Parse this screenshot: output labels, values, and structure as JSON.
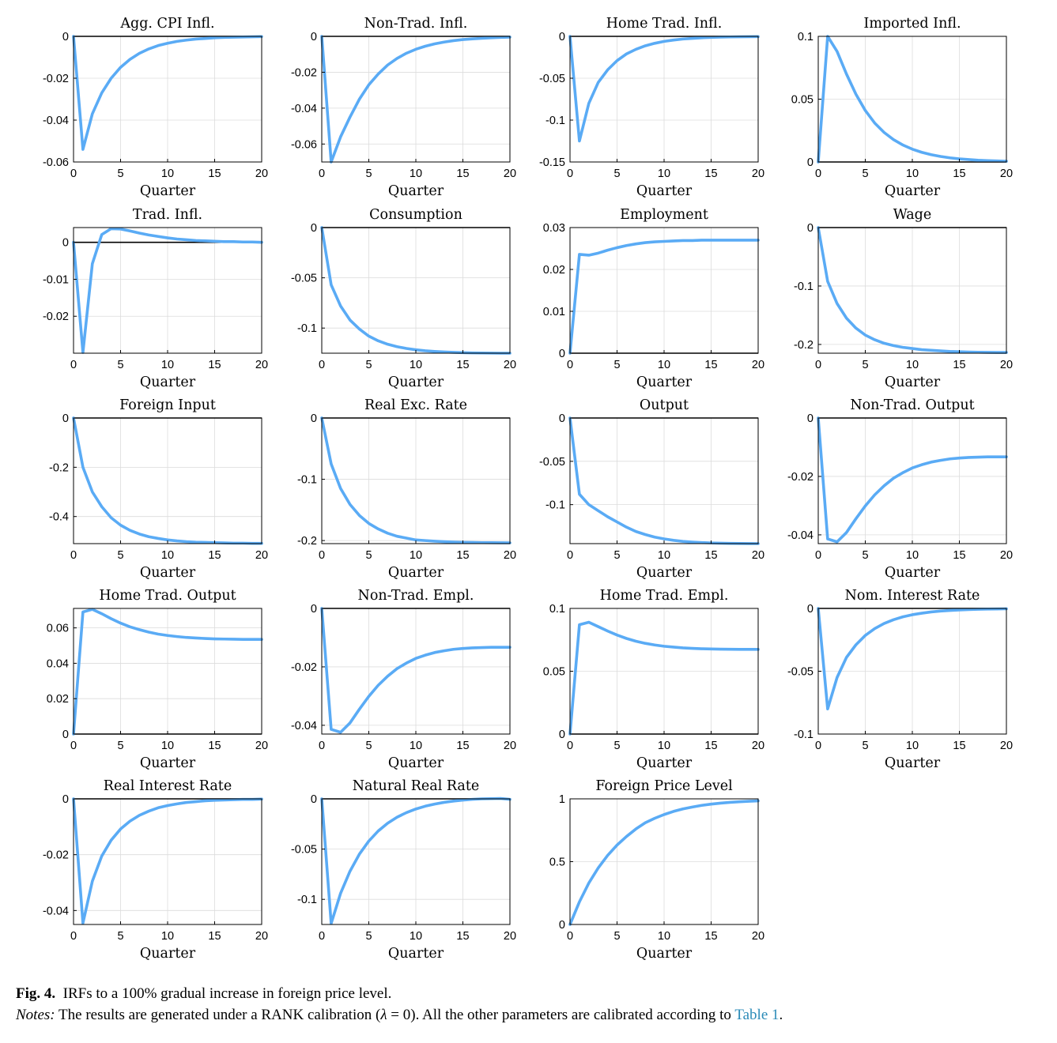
{
  "figure": {
    "x_label": "Quarter",
    "x_ticks": [
      0,
      5,
      10,
      15,
      20
    ],
    "line_color": "#5aabf5",
    "zero_line_color": "#000000",
    "grid": true,
    "grid_color": "#dcdcdc"
  },
  "caption": {
    "fig_label": "Fig. 4.",
    "title": "IRFs to a 100% gradual increase in foreign price level.",
    "notes_label": "Notes:",
    "notes_text_1": "The results are generated under a RANK calibration (",
    "lambda_symbol": "λ",
    "notes_text_2": " = 0). All the other parameters are calibrated according to ",
    "link_text": "Table 1",
    "notes_end": "."
  },
  "chart_data": [
    {
      "type": "line",
      "title": "Agg. CPI Infl.",
      "xlabel": "Quarter",
      "ylim": [
        -0.06,
        0
      ],
      "yticks": [
        0,
        -0.02,
        -0.04,
        -0.06
      ],
      "ytick_labels": [
        "0",
        "-0.02",
        "-0.04",
        "-0.06"
      ],
      "zero_line": true,
      "x": [
        0,
        1,
        2,
        3,
        4,
        5,
        6,
        7,
        8,
        9,
        10,
        11,
        12,
        13,
        14,
        15,
        16,
        17,
        18,
        19,
        20
      ],
      "y": [
        0,
        -0.054,
        -0.037,
        -0.027,
        -0.02,
        -0.0148,
        -0.011,
        -0.0081,
        -0.006,
        -0.0044,
        -0.0033,
        -0.0024,
        -0.0018,
        -0.0013,
        -0.001,
        -0.0007,
        -0.0005,
        -0.0004,
        -0.0003,
        -0.0002,
        -0.0001
      ]
    },
    {
      "type": "line",
      "title": "Non-Trad. Infl.",
      "xlabel": "Quarter",
      "ylim": [
        -0.07,
        0
      ],
      "yticks": [
        0,
        -0.02,
        -0.04,
        -0.06
      ],
      "ytick_labels": [
        "0",
        "-0.02",
        "-0.04",
        "-0.06"
      ],
      "zero_line": true,
      "x": [
        0,
        1,
        2,
        3,
        4,
        5,
        6,
        7,
        8,
        9,
        10,
        11,
        12,
        13,
        14,
        15,
        16,
        17,
        18,
        19,
        20
      ],
      "y": [
        0,
        -0.07,
        -0.056,
        -0.045,
        -0.035,
        -0.027,
        -0.021,
        -0.016,
        -0.0123,
        -0.0094,
        -0.0072,
        -0.0055,
        -0.0042,
        -0.0032,
        -0.0024,
        -0.0018,
        -0.0014,
        -0.0011,
        -0.0008,
        -0.0006,
        -0.0004
      ]
    },
    {
      "type": "line",
      "title": "Home Trad. Infl.",
      "xlabel": "Quarter",
      "ylim": [
        -0.15,
        0
      ],
      "yticks": [
        0,
        -0.05,
        -0.1,
        -0.15
      ],
      "ytick_labels": [
        "0",
        "-0.05",
        "-0.1",
        "-0.15"
      ],
      "zero_line": true,
      "x": [
        0,
        1,
        2,
        3,
        4,
        5,
        6,
        7,
        8,
        9,
        10,
        11,
        12,
        13,
        14,
        15,
        16,
        17,
        18,
        19,
        20
      ],
      "y": [
        0,
        -0.125,
        -0.08,
        -0.055,
        -0.04,
        -0.029,
        -0.021,
        -0.0155,
        -0.0113,
        -0.0083,
        -0.006,
        -0.0044,
        -0.0032,
        -0.0024,
        -0.0017,
        -0.0013,
        -0.0009,
        -0.0007,
        -0.0005,
        -0.0004,
        -0.0003
      ]
    },
    {
      "type": "line",
      "title": "Imported Infl.",
      "xlabel": "Quarter",
      "ylim": [
        0,
        0.1
      ],
      "yticks": [
        0,
        0.05,
        0.1
      ],
      "ytick_labels": [
        "0",
        "0.05",
        "0.1"
      ],
      "zero_line": true,
      "x": [
        0,
        1,
        2,
        3,
        4,
        5,
        6,
        7,
        8,
        9,
        10,
        11,
        12,
        13,
        14,
        15,
        16,
        17,
        18,
        19,
        20
      ],
      "y": [
        0,
        0.1,
        0.088,
        0.07,
        0.054,
        0.041,
        0.031,
        0.0235,
        0.0178,
        0.0135,
        0.0102,
        0.0077,
        0.0058,
        0.0044,
        0.0033,
        0.0025,
        0.0019,
        0.0014,
        0.0011,
        0.0008,
        0.0006
      ]
    },
    {
      "type": "line",
      "title": "Trad. Infl.",
      "xlabel": "Quarter",
      "ylim": [
        -0.03,
        0.004
      ],
      "yticks": [
        0,
        -0.01,
        -0.02
      ],
      "ytick_labels": [
        "0",
        "-0.01",
        "-0.02"
      ],
      "zero_line": true,
      "x": [
        0,
        1,
        2,
        3,
        4,
        5,
        6,
        7,
        8,
        9,
        10,
        11,
        12,
        13,
        14,
        15,
        16,
        17,
        18,
        19,
        20
      ],
      "y": [
        0,
        -0.0298,
        -0.0058,
        0.0021,
        0.0037,
        0.0036,
        0.0031,
        0.0025,
        0.002,
        0.0016,
        0.0012,
        0.0009,
        0.0007,
        0.0005,
        0.0004,
        0.0003,
        0.0002,
        0.0002,
        0.0001,
        0.0001,
        0
      ]
    },
    {
      "type": "line",
      "title": "Consumption",
      "xlabel": "Quarter",
      "ylim": [
        -0.125,
        0
      ],
      "yticks": [
        0,
        -0.05,
        -0.1
      ],
      "ytick_labels": [
        "0",
        "-0.05",
        "-0.1"
      ],
      "zero_line": true,
      "x": [
        0,
        1,
        2,
        3,
        4,
        5,
        6,
        7,
        8,
        9,
        10,
        11,
        12,
        13,
        14,
        15,
        16,
        17,
        18,
        19,
        20
      ],
      "y": [
        0,
        -0.057,
        -0.078,
        -0.092,
        -0.101,
        -0.108,
        -0.1127,
        -0.1161,
        -0.1185,
        -0.1203,
        -0.1216,
        -0.1226,
        -0.1233,
        -0.1238,
        -0.1242,
        -0.1245,
        -0.1247,
        -0.1248,
        -0.1249,
        -0.125,
        -0.125
      ]
    },
    {
      "type": "line",
      "title": "Employment",
      "xlabel": "Quarter",
      "ylim": [
        0,
        0.03
      ],
      "yticks": [
        0,
        0.01,
        0.02,
        0.03
      ],
      "ytick_labels": [
        "0",
        "0.01",
        "0.02",
        "0.03"
      ],
      "zero_line": true,
      "x": [
        0,
        1,
        2,
        3,
        4,
        5,
        6,
        7,
        8,
        9,
        10,
        11,
        12,
        13,
        14,
        15,
        16,
        17,
        18,
        19,
        20
      ],
      "y": [
        0,
        0.0236,
        0.0234,
        0.0239,
        0.0246,
        0.0252,
        0.0257,
        0.0261,
        0.0264,
        0.0266,
        0.0267,
        0.0268,
        0.0269,
        0.0269,
        0.027,
        0.027,
        0.027,
        0.027,
        0.027,
        0.027,
        0.027
      ]
    },
    {
      "type": "line",
      "title": "Wage",
      "xlabel": "Quarter",
      "ylim": [
        -0.215,
        0
      ],
      "yticks": [
        0,
        -0.1,
        -0.2
      ],
      "ytick_labels": [
        "0",
        "-0.1",
        "-0.2"
      ],
      "zero_line": true,
      "x": [
        0,
        1,
        2,
        3,
        4,
        5,
        6,
        7,
        8,
        9,
        10,
        11,
        12,
        13,
        14,
        15,
        16,
        17,
        18,
        19,
        20
      ],
      "y": [
        0,
        -0.092,
        -0.13,
        -0.155,
        -0.172,
        -0.184,
        -0.192,
        -0.198,
        -0.202,
        -0.205,
        -0.207,
        -0.209,
        -0.21,
        -0.211,
        -0.212,
        -0.2125,
        -0.213,
        -0.2133,
        -0.2135,
        -0.2137,
        -0.2138
      ]
    },
    {
      "type": "line",
      "title": "Foreign Input",
      "xlabel": "Quarter",
      "ylim": [
        -0.51,
        0
      ],
      "yticks": [
        0,
        -0.2,
        -0.4
      ],
      "ytick_labels": [
        "0",
        "-0.2",
        "-0.4"
      ],
      "zero_line": true,
      "x": [
        0,
        1,
        2,
        3,
        4,
        5,
        6,
        7,
        8,
        9,
        10,
        11,
        12,
        13,
        14,
        15,
        16,
        17,
        18,
        19,
        20
      ],
      "y": [
        0,
        -0.2,
        -0.3,
        -0.36,
        -0.405,
        -0.435,
        -0.456,
        -0.471,
        -0.482,
        -0.489,
        -0.495,
        -0.499,
        -0.502,
        -0.504,
        -0.505,
        -0.506,
        -0.507,
        -0.508,
        -0.508,
        -0.509,
        -0.509
      ]
    },
    {
      "type": "line",
      "title": "Real Exc. Rate",
      "xlabel": "Quarter",
      "ylim": [
        -0.205,
        0
      ],
      "yticks": [
        0,
        -0.1,
        -0.2
      ],
      "ytick_labels": [
        "0",
        "-0.1",
        "-0.2"
      ],
      "zero_line": true,
      "x": [
        0,
        1,
        2,
        3,
        4,
        5,
        6,
        7,
        8,
        9,
        10,
        11,
        12,
        13,
        14,
        15,
        16,
        17,
        18,
        19,
        20
      ],
      "y": [
        0,
        -0.075,
        -0.115,
        -0.141,
        -0.159,
        -0.172,
        -0.181,
        -0.188,
        -0.193,
        -0.196,
        -0.199,
        -0.2,
        -0.201,
        -0.2019,
        -0.2025,
        -0.2029,
        -0.2032,
        -0.2034,
        -0.2035,
        -0.2036,
        -0.2037
      ]
    },
    {
      "type": "line",
      "title": "Output",
      "xlabel": "Quarter",
      "ylim": [
        -0.145,
        0
      ],
      "yticks": [
        0,
        -0.05,
        -0.1
      ],
      "ytick_labels": [
        "0",
        "-0.05",
        "-0.1"
      ],
      "zero_line": true,
      "x": [
        0,
        1,
        2,
        3,
        4,
        5,
        6,
        7,
        8,
        9,
        10,
        11,
        12,
        13,
        14,
        15,
        16,
        17,
        18,
        19,
        20
      ],
      "y": [
        0,
        -0.088,
        -0.1,
        -0.107,
        -0.114,
        -0.12,
        -0.126,
        -0.131,
        -0.1345,
        -0.1375,
        -0.1395,
        -0.1412,
        -0.1424,
        -0.1432,
        -0.1438,
        -0.1442,
        -0.1445,
        -0.1447,
        -0.1448,
        -0.1449,
        -0.145
      ]
    },
    {
      "type": "line",
      "title": "Non-Trad. Output",
      "xlabel": "Quarter",
      "ylim": [
        -0.043,
        0
      ],
      "yticks": [
        0,
        -0.02,
        -0.04
      ],
      "ytick_labels": [
        "0",
        "-0.02",
        "-0.04"
      ],
      "zero_line": true,
      "x": [
        0,
        1,
        2,
        3,
        4,
        5,
        6,
        7,
        8,
        9,
        10,
        11,
        12,
        13,
        14,
        15,
        16,
        17,
        18,
        19,
        20
      ],
      "y": [
        0,
        -0.0414,
        -0.0424,
        -0.0392,
        -0.0345,
        -0.0301,
        -0.0263,
        -0.0232,
        -0.0206,
        -0.0187,
        -0.0171,
        -0.016,
        -0.0151,
        -0.0145,
        -0.014,
        -0.0137,
        -0.0135,
        -0.0134,
        -0.0133,
        -0.0133,
        -0.0133
      ]
    },
    {
      "type": "line",
      "title": "Home Trad. Output",
      "xlabel": "Quarter",
      "ylim": [
        0,
        0.071
      ],
      "yticks": [
        0,
        0.02,
        0.04,
        0.06
      ],
      "ytick_labels": [
        "0",
        "0.02",
        "0.04",
        "0.06"
      ],
      "zero_line": true,
      "x": [
        0,
        1,
        2,
        3,
        4,
        5,
        6,
        7,
        8,
        9,
        10,
        11,
        12,
        13,
        14,
        15,
        16,
        17,
        18,
        19,
        20
      ],
      "y": [
        0,
        0.069,
        0.0705,
        0.068,
        0.0652,
        0.0627,
        0.0606,
        0.059,
        0.0576,
        0.0565,
        0.0557,
        0.0551,
        0.0546,
        0.0543,
        0.054,
        0.0538,
        0.0537,
        0.0536,
        0.0535,
        0.0535,
        0.0535
      ]
    },
    {
      "type": "line",
      "title": "Non-Trad. Empl.",
      "xlabel": "Quarter",
      "ylim": [
        -0.043,
        0
      ],
      "yticks": [
        0,
        -0.02,
        -0.04
      ],
      "ytick_labels": [
        "0",
        "-0.02",
        "-0.04"
      ],
      "zero_line": true,
      "x": [
        0,
        1,
        2,
        3,
        4,
        5,
        6,
        7,
        8,
        9,
        10,
        11,
        12,
        13,
        14,
        15,
        16,
        17,
        18,
        19,
        20
      ],
      "y": [
        0,
        -0.0414,
        -0.0424,
        -0.0392,
        -0.0345,
        -0.0301,
        -0.0263,
        -0.0232,
        -0.0206,
        -0.0187,
        -0.0171,
        -0.016,
        -0.0151,
        -0.0145,
        -0.014,
        -0.0137,
        -0.0135,
        -0.0134,
        -0.0133,
        -0.0133,
        -0.0133
      ]
    },
    {
      "type": "line",
      "title": "Home Trad. Empl.",
      "xlabel": "Quarter",
      "ylim": [
        0,
        0.1
      ],
      "yticks": [
        0,
        0.05,
        0.1
      ],
      "ytick_labels": [
        "0",
        "0.05",
        "0.1"
      ],
      "zero_line": true,
      "x": [
        0,
        1,
        2,
        3,
        4,
        5,
        6,
        7,
        8,
        9,
        10,
        11,
        12,
        13,
        14,
        15,
        16,
        17,
        18,
        19,
        20
      ],
      "y": [
        0,
        0.087,
        0.089,
        0.0855,
        0.082,
        0.0788,
        0.0761,
        0.0739,
        0.0722,
        0.0709,
        0.0699,
        0.0692,
        0.0686,
        0.0682,
        0.0679,
        0.0677,
        0.0676,
        0.0675,
        0.0674,
        0.0674,
        0.0674
      ]
    },
    {
      "type": "line",
      "title": "Nom. Interest Rate",
      "xlabel": "Quarter",
      "ylim": [
        -0.1,
        0
      ],
      "yticks": [
        0,
        -0.05,
        -0.1
      ],
      "ytick_labels": [
        "0",
        "-0.05",
        "-0.1"
      ],
      "zero_line": true,
      "x": [
        0,
        1,
        2,
        3,
        4,
        5,
        6,
        7,
        8,
        9,
        10,
        11,
        12,
        13,
        14,
        15,
        16,
        17,
        18,
        19,
        20
      ],
      "y": [
        0,
        -0.08,
        -0.055,
        -0.039,
        -0.029,
        -0.0215,
        -0.0161,
        -0.012,
        -0.009,
        -0.0067,
        -0.005,
        -0.0038,
        -0.0028,
        -0.0021,
        -0.0016,
        -0.0012,
        -0.0009,
        -0.0007,
        -0.0005,
        -0.0004,
        -0.0003
      ]
    },
    {
      "type": "line",
      "title": "Real Interest Rate",
      "xlabel": "Quarter",
      "ylim": [
        -0.045,
        0
      ],
      "yticks": [
        0,
        -0.02,
        -0.04
      ],
      "ytick_labels": [
        "0",
        "-0.02",
        "-0.04"
      ],
      "zero_line": true,
      "x": [
        0,
        1,
        2,
        3,
        4,
        5,
        6,
        7,
        8,
        9,
        10,
        11,
        12,
        13,
        14,
        15,
        16,
        17,
        18,
        19,
        20
      ],
      "y": [
        0,
        -0.0445,
        -0.0295,
        -0.0205,
        -0.0148,
        -0.0108,
        -0.008,
        -0.0059,
        -0.0044,
        -0.0032,
        -0.0024,
        -0.0018,
        -0.0013,
        -0.001,
        -0.0007,
        -0.0005,
        -0.0004,
        -0.0003,
        -0.0002,
        -0.0002,
        -0.0001
      ]
    },
    {
      "type": "line",
      "title": "Natural Real Rate",
      "xlabel": "Quarter",
      "ylim": [
        -0.125,
        0
      ],
      "yticks": [
        0,
        -0.05,
        -0.1
      ],
      "ytick_labels": [
        "0",
        "-0.05",
        "-0.1"
      ],
      "zero_line": true,
      "x": [
        0,
        1,
        2,
        3,
        4,
        5,
        6,
        7,
        8,
        9,
        10,
        11,
        12,
        13,
        14,
        15,
        16,
        17,
        18,
        19,
        20
      ],
      "y": [
        0,
        -0.124,
        -0.094,
        -0.072,
        -0.055,
        -0.042,
        -0.032,
        -0.0243,
        -0.0183,
        -0.0137,
        -0.0101,
        -0.0073,
        -0.0052,
        -0.0035,
        -0.0022,
        -0.0012,
        -0.0005,
        0,
        0.0002,
        0.0004,
        -0.0005
      ]
    },
    {
      "type": "line",
      "title": "Foreign Price Level",
      "xlabel": "Quarter",
      "ylim": [
        0,
        1
      ],
      "yticks": [
        0,
        0.5,
        1
      ],
      "ytick_labels": [
        "0",
        "0.5",
        "1"
      ],
      "zero_line": false,
      "x": [
        0,
        1,
        2,
        3,
        4,
        5,
        6,
        7,
        8,
        9,
        10,
        11,
        12,
        13,
        14,
        15,
        16,
        17,
        18,
        19,
        20
      ],
      "y": [
        0,
        0.18,
        0.33,
        0.45,
        0.55,
        0.632,
        0.7,
        0.76,
        0.81,
        0.845,
        0.875,
        0.9,
        0.92,
        0.935,
        0.948,
        0.958,
        0.966,
        0.972,
        0.977,
        0.981,
        0.984
      ]
    }
  ]
}
